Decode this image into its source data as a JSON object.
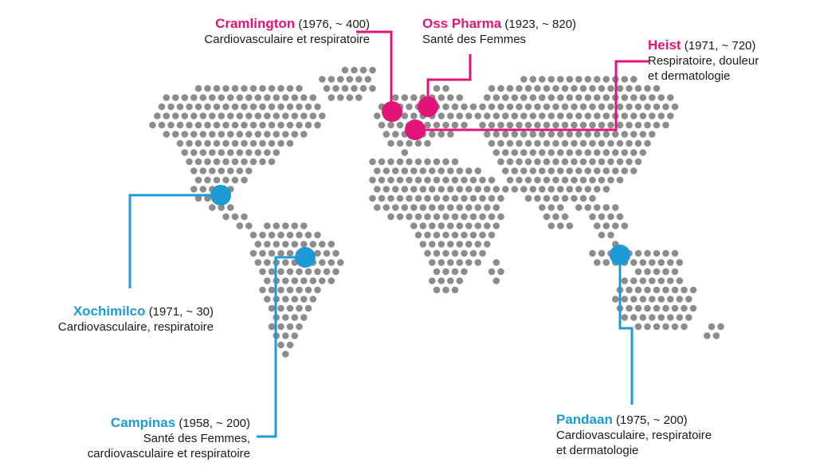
{
  "title": "",
  "colors": {
    "europe": "#e2147a",
    "americas_asia": "#1e9ad6",
    "land_dots": "#8c8c8c"
  },
  "sites": [
    {
      "id": "cramlington",
      "name": "Cramlington",
      "meta": "(1976, ~ 400)",
      "desc": "Cardiovasculaire et respiratoire",
      "region_color": "pink"
    },
    {
      "id": "oss",
      "name": "Oss Pharma",
      "meta": "(1923, ~ 820)",
      "desc": "Santé des Femmes",
      "region_color": "pink"
    },
    {
      "id": "heist",
      "name": "Heist",
      "meta": "(1971, ~ 720)",
      "desc": "Respiratoire, douleur\net dermatologie",
      "region_color": "pink"
    },
    {
      "id": "xochimilco",
      "name": "Xochimilco",
      "meta": "(1971, ~ 30)",
      "desc": "Cardiovasculaire, respiratoire",
      "region_color": "blue"
    },
    {
      "id": "campinas",
      "name": "Campinas",
      "meta": "(1958, ~ 200)",
      "desc": "Santé des Femmes,\ncardiovasculaire et respiratoire",
      "region_color": "blue"
    },
    {
      "id": "pandaan",
      "name": "Pandaan",
      "meta": "(1975, ~ 200)",
      "desc": "Cardiovasculaire, respiratoire\net dermatologie",
      "region_color": "blue"
    }
  ]
}
